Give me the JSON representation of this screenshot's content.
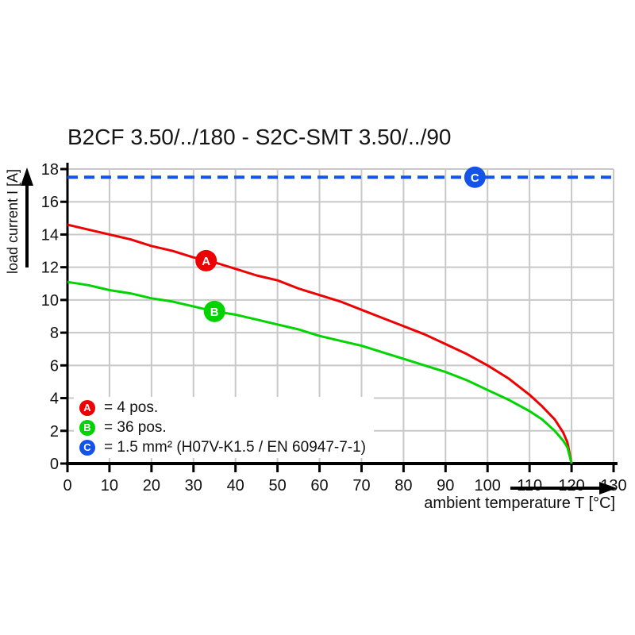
{
  "chart_data": {
    "type": "line",
    "title": "B2CF 3.50/../180 - S2C-SMT 3.50/../90",
    "xlabel": "ambient temperature T [°C]",
    "ylabel": "load current I [A]",
    "xlim": [
      0,
      130
    ],
    "ylim": [
      0,
      18
    ],
    "xticks": [
      0,
      10,
      20,
      30,
      40,
      50,
      60,
      70,
      80,
      90,
      100,
      110,
      120,
      130
    ],
    "yticks": [
      0,
      2,
      4,
      6,
      8,
      10,
      12,
      14,
      16,
      18
    ],
    "grid": true,
    "grid_color": "#c8c8c8",
    "axis_color": "#000000",
    "legend_position": "inside-bottom-left",
    "series": [
      {
        "id": "A",
        "label": "= 4 pos.",
        "color": "#ee0000",
        "line_style": "solid",
        "x": [
          0,
          5,
          10,
          15,
          20,
          25,
          30,
          35,
          40,
          45,
          50,
          55,
          60,
          65,
          70,
          75,
          80,
          85,
          90,
          95,
          100,
          105,
          110,
          113,
          116,
          118,
          119,
          120
        ],
        "y": [
          14.6,
          14.3,
          14.0,
          13.7,
          13.3,
          13.0,
          12.6,
          12.3,
          11.9,
          11.5,
          11.2,
          10.7,
          10.3,
          9.9,
          9.4,
          8.9,
          8.4,
          7.9,
          7.3,
          6.7,
          6.0,
          5.2,
          4.2,
          3.5,
          2.7,
          1.9,
          1.3,
          0
        ],
        "marker": {
          "x": 33,
          "y": 12.4
        }
      },
      {
        "id": "B",
        "label": "= 36 pos.",
        "color": "#00d400",
        "line_style": "solid",
        "x": [
          0,
          5,
          10,
          15,
          20,
          25,
          30,
          35,
          40,
          45,
          50,
          55,
          60,
          65,
          70,
          75,
          80,
          85,
          90,
          95,
          100,
          105,
          110,
          113,
          116,
          118,
          119,
          120
        ],
        "y": [
          11.1,
          10.9,
          10.6,
          10.4,
          10.1,
          9.9,
          9.6,
          9.3,
          9.1,
          8.8,
          8.5,
          8.2,
          7.8,
          7.5,
          7.2,
          6.8,
          6.4,
          6.0,
          5.6,
          5.1,
          4.5,
          3.9,
          3.2,
          2.7,
          2.0,
          1.4,
          1.0,
          0
        ],
        "marker": {
          "x": 35,
          "y": 9.3
        }
      },
      {
        "id": "C",
        "label": "= 1.5 mm² (H07V-K1.5 / EN 60947-7-1)",
        "color": "#1453e8",
        "line_style": "dashed",
        "x": [
          0,
          130
        ],
        "y": [
          17.5,
          17.5
        ],
        "marker": {
          "x": 97,
          "y": 17.5
        }
      }
    ]
  }
}
